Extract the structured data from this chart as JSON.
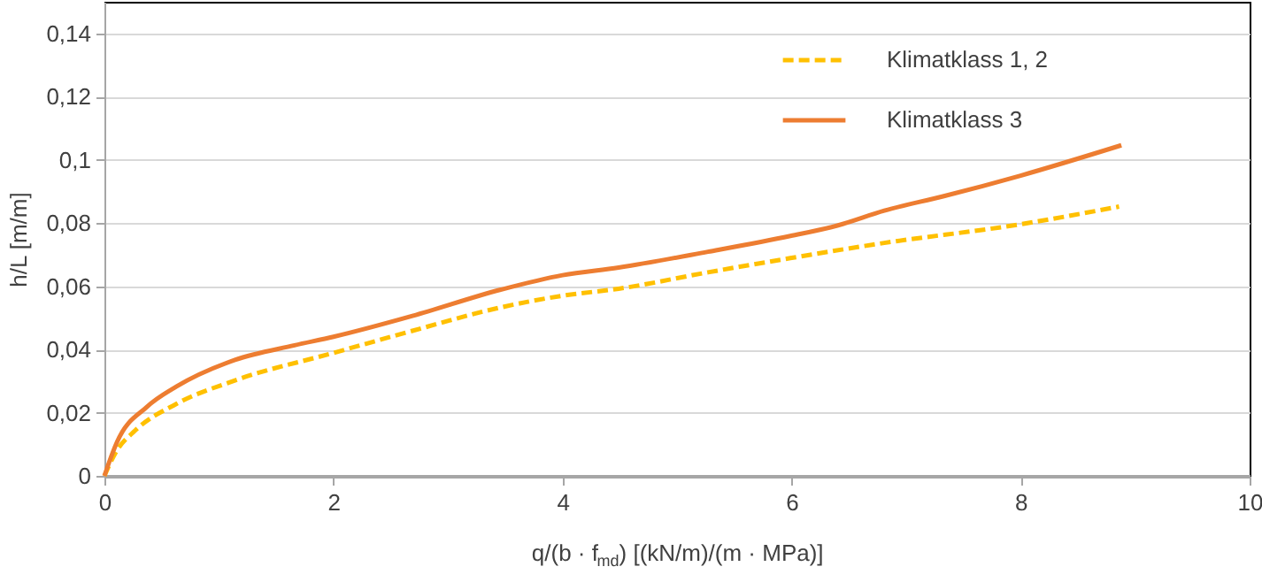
{
  "chart_data": {
    "type": "line",
    "xlabel": "q/(b · f$_{md}$) [(kN/m)/(m · MPa)]",
    "ylabel": "h/L [m/m]",
    "xlim": [
      0,
      10
    ],
    "xticks": [
      0,
      2,
      4,
      6,
      8,
      10
    ],
    "ylim": [
      0,
      0.15
    ],
    "yticks": [
      0,
      {
        "value": 0.02,
        "label": "0,02"
      },
      {
        "value": 0.04,
        "label": "0,04"
      },
      {
        "value": 0.06,
        "label": "0,06"
      },
      {
        "value": 0.08,
        "label": "0,08"
      },
      {
        "value": 0.1,
        "label": "0,1"
      },
      {
        "value": 0.12,
        "label": "0,12"
      },
      {
        "value": 0.14,
        "label": "0,14"
      }
    ],
    "grid": "y",
    "legend": "top right",
    "series": [
      {
        "name": "Klimatklass 1, 2",
        "color": "#ffc000",
        "line_style": "dashed",
        "x": [
          0,
          0.1,
          0.27,
          0.63,
          1.14,
          2.0,
          2.69,
          3.46,
          4.0,
          4.49,
          5.27,
          5.99,
          6.81,
          8.0,
          8.86
        ],
        "values": [
          0,
          0.0075,
          0.0144,
          0.0228,
          0.0302,
          0.0389,
          0.0459,
          0.0533,
          0.057,
          0.0592,
          0.0644,
          0.0689,
          0.0737,
          0.0796,
          0.0852
        ]
      },
      {
        "name": "Klimatklass 3",
        "color": "#ed7d31",
        "line_style": "solid",
        "x": [
          0,
          0.04,
          0.11,
          0.37,
          0.63,
          1.14,
          1.66,
          2.0,
          2.69,
          3.46,
          4.0,
          4.49,
          5.27,
          5.99,
          6.4,
          6.81,
          7.33,
          8.0,
          8.88
        ],
        "values": [
          0,
          0.0042,
          0.0107,
          0.0218,
          0.0283,
          0.0367,
          0.0413,
          0.044,
          0.0506,
          0.0589,
          0.0635,
          0.0659,
          0.0709,
          0.0759,
          0.0792,
          0.0839,
          0.0885,
          0.095,
          0.1046
        ]
      }
    ]
  }
}
